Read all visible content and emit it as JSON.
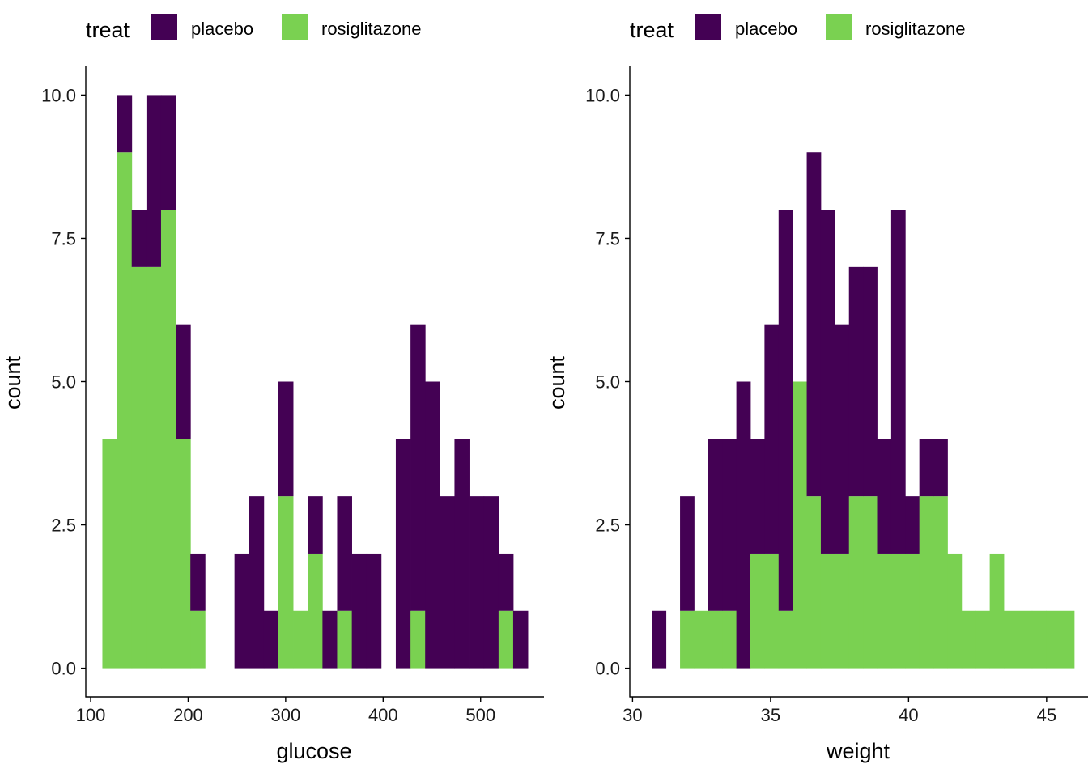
{
  "colors": {
    "placebo": "#440154",
    "rosiglitazone": "#7AD151",
    "axis": "#000000"
  },
  "chart_data": [
    {
      "type": "bar",
      "subtype": "stacked-histogram",
      "legend": {
        "title": "treat",
        "position": "top-left",
        "entries": [
          {
            "label": "placebo",
            "color": "#440154"
          },
          {
            "label": "rosiglitazone",
            "color": "#7AD151"
          }
        ]
      },
      "xlabel": "glucose",
      "ylabel": "count",
      "xlim": [
        95,
        565
      ],
      "ylim": [
        -0.5,
        10.5
      ],
      "xticks": [
        100,
        200,
        300,
        400,
        500
      ],
      "yticks": [
        0.0,
        2.5,
        5.0,
        7.5,
        10.0
      ],
      "ytick_labels": [
        "0.0",
        "2.5",
        "5.0",
        "7.5",
        "10.0"
      ],
      "grid": false,
      "bin_width": 15.05,
      "bins": [
        {
          "x0": 112.0,
          "placebo": 0,
          "rosiglitazone": 4
        },
        {
          "x0": 127.1,
          "placebo": 1,
          "rosiglitazone": 9
        },
        {
          "x0": 142.1,
          "placebo": 1,
          "rosiglitazone": 7
        },
        {
          "x0": 157.2,
          "placebo": 3,
          "rosiglitazone": 7
        },
        {
          "x0": 172.2,
          "placebo": 2,
          "rosiglitazone": 8
        },
        {
          "x0": 187.3,
          "placebo": 2,
          "rosiglitazone": 4
        },
        {
          "x0": 202.3,
          "placebo": 1,
          "rosiglitazone": 1
        },
        {
          "x0": 217.4,
          "placebo": 0,
          "rosiglitazone": 0
        },
        {
          "x0": 232.4,
          "placebo": 0,
          "rosiglitazone": 0
        },
        {
          "x0": 247.5,
          "placebo": 2,
          "rosiglitazone": 0
        },
        {
          "x0": 262.5,
          "placebo": 3,
          "rosiglitazone": 0
        },
        {
          "x0": 277.6,
          "placebo": 1,
          "rosiglitazone": 0
        },
        {
          "x0": 292.6,
          "placebo": 2,
          "rosiglitazone": 3
        },
        {
          "x0": 307.7,
          "placebo": 0,
          "rosiglitazone": 1
        },
        {
          "x0": 322.7,
          "placebo": 1,
          "rosiglitazone": 2
        },
        {
          "x0": 337.8,
          "placebo": 1,
          "rosiglitazone": 0
        },
        {
          "x0": 352.8,
          "placebo": 2,
          "rosiglitazone": 1
        },
        {
          "x0": 367.9,
          "placebo": 2,
          "rosiglitazone": 0
        },
        {
          "x0": 382.9,
          "placebo": 2,
          "rosiglitazone": 0
        },
        {
          "x0": 398.0,
          "placebo": 0,
          "rosiglitazone": 0
        },
        {
          "x0": 413.0,
          "placebo": 4,
          "rosiglitazone": 0
        },
        {
          "x0": 428.1,
          "placebo": 5,
          "rosiglitazone": 1
        },
        {
          "x0": 443.1,
          "placebo": 5,
          "rosiglitazone": 0
        },
        {
          "x0": 458.2,
          "placebo": 3,
          "rosiglitazone": 0
        },
        {
          "x0": 473.2,
          "placebo": 4,
          "rosiglitazone": 0
        },
        {
          "x0": 488.3,
          "placebo": 3,
          "rosiglitazone": 0
        },
        {
          "x0": 503.3,
          "placebo": 3,
          "rosiglitazone": 0
        },
        {
          "x0": 518.4,
          "placebo": 1,
          "rosiglitazone": 1
        },
        {
          "x0": 533.4,
          "placebo": 1,
          "rosiglitazone": 0
        }
      ]
    },
    {
      "type": "bar",
      "subtype": "stacked-histogram",
      "legend": {
        "title": "treat",
        "position": "top-left",
        "entries": [
          {
            "label": "placebo",
            "color": "#440154"
          },
          {
            "label": "rosiglitazone",
            "color": "#7AD151"
          }
        ]
      },
      "xlabel": "weight",
      "ylabel": "count",
      "xlim": [
        29.9,
        46.5
      ],
      "ylim": [
        -0.5,
        10.5
      ],
      "xticks": [
        30,
        35,
        40,
        45
      ],
      "yticks": [
        0.0,
        2.5,
        5.0,
        7.5,
        10.0
      ],
      "ytick_labels": [
        "0.0",
        "2.5",
        "5.0",
        "7.5",
        "10.0"
      ],
      "grid": false,
      "bin_width": 0.5103,
      "bins": [
        {
          "x0": 30.7,
          "placebo": 1,
          "rosiglitazone": 0
        },
        {
          "x0": 31.21,
          "placebo": 0,
          "rosiglitazone": 0
        },
        {
          "x0": 31.72,
          "placebo": 2,
          "rosiglitazone": 1
        },
        {
          "x0": 32.23,
          "placebo": 0,
          "rosiglitazone": 1
        },
        {
          "x0": 32.74,
          "placebo": 3,
          "rosiglitazone": 1
        },
        {
          "x0": 33.25,
          "placebo": 3,
          "rosiglitazone": 1
        },
        {
          "x0": 33.76,
          "placebo": 5,
          "rosiglitazone": 0
        },
        {
          "x0": 34.27,
          "placebo": 2,
          "rosiglitazone": 2
        },
        {
          "x0": 34.78,
          "placebo": 4,
          "rosiglitazone": 2
        },
        {
          "x0": 35.29,
          "placebo": 7,
          "rosiglitazone": 1
        },
        {
          "x0": 35.8,
          "placebo": 0,
          "rosiglitazone": 5
        },
        {
          "x0": 36.31,
          "placebo": 6,
          "rosiglitazone": 3
        },
        {
          "x0": 36.82,
          "placebo": 6,
          "rosiglitazone": 2
        },
        {
          "x0": 37.33,
          "placebo": 4,
          "rosiglitazone": 2
        },
        {
          "x0": 37.84,
          "placebo": 4,
          "rosiglitazone": 3
        },
        {
          "x0": 38.35,
          "placebo": 4,
          "rosiglitazone": 3
        },
        {
          "x0": 38.86,
          "placebo": 2,
          "rosiglitazone": 2
        },
        {
          "x0": 39.37,
          "placebo": 6,
          "rosiglitazone": 2
        },
        {
          "x0": 39.88,
          "placebo": 1,
          "rosiglitazone": 2
        },
        {
          "x0": 40.39,
          "placebo": 1,
          "rosiglitazone": 3
        },
        {
          "x0": 40.9,
          "placebo": 1,
          "rosiglitazone": 3
        },
        {
          "x0": 41.41,
          "placebo": 0,
          "rosiglitazone": 2
        },
        {
          "x0": 41.92,
          "placebo": 0,
          "rosiglitazone": 1
        },
        {
          "x0": 42.43,
          "placebo": 0,
          "rosiglitazone": 1
        },
        {
          "x0": 42.94,
          "placebo": 0,
          "rosiglitazone": 2
        },
        {
          "x0": 43.45,
          "placebo": 0,
          "rosiglitazone": 1
        },
        {
          "x0": 43.96,
          "placebo": 0,
          "rosiglitazone": 1
        },
        {
          "x0": 44.47,
          "placebo": 0,
          "rosiglitazone": 1
        },
        {
          "x0": 44.98,
          "placebo": 0,
          "rosiglitazone": 1
        },
        {
          "x0": 45.49,
          "placebo": 0,
          "rosiglitazone": 1
        }
      ]
    }
  ]
}
